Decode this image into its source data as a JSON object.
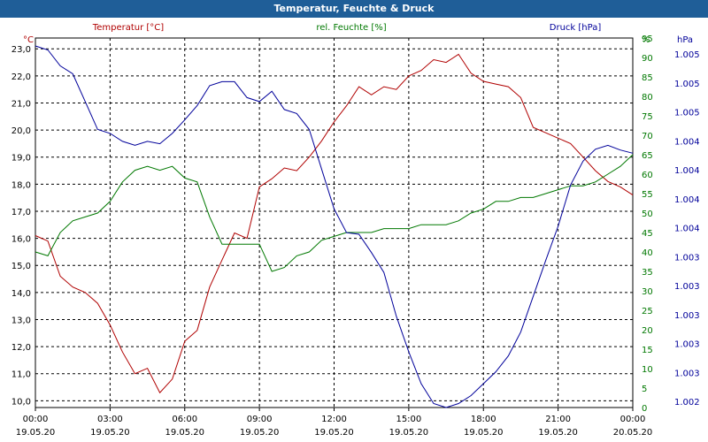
{
  "window": {
    "title": "Temperatur, Feuchte & Druck"
  },
  "chart_data": {
    "type": "line",
    "title": "Temperatur, Feuchte & Druck",
    "grid": true,
    "colors": {
      "temperature": "#b00000",
      "humidity": "#007800",
      "pressure": "#00009a",
      "grid": "#000000",
      "title_bg": "#1f5e98"
    },
    "x_ticks": [
      {
        "time": "00:00",
        "date": "19.05.20"
      },
      {
        "time": "03:00",
        "date": "19.05.20"
      },
      {
        "time": "06:00",
        "date": "19.05.20"
      },
      {
        "time": "09:00",
        "date": "19.05.20"
      },
      {
        "time": "12:00",
        "date": "19.05.20"
      },
      {
        "time": "15:00",
        "date": "19.05.20"
      },
      {
        "time": "18:00",
        "date": "19.05.20"
      },
      {
        "time": "21:00",
        "date": "19.05.20"
      },
      {
        "time": "00:00",
        "date": "20.05.20"
      }
    ],
    "axes": {
      "temperature": {
        "unit": "°C",
        "header": "Temperatur [°C]",
        "min": 9.75,
        "max": 23.4,
        "ticks": [
          "10,0",
          "11,0",
          "12,0",
          "13,0",
          "14,0",
          "15,0",
          "16,0",
          "17,0",
          "18,0",
          "19,0",
          "20,0",
          "21,0",
          "22,0",
          "23,0"
        ]
      },
      "humidity": {
        "unit": "%",
        "header": "rel. Feuchte [%]",
        "min": 0,
        "max": 95,
        "ticks": [
          "0",
          "5",
          "10",
          "15",
          "20",
          "25",
          "30",
          "35",
          "40",
          "45",
          "50",
          "55",
          "60",
          "65",
          "70",
          "75",
          "80",
          "85",
          "90",
          "95"
        ]
      },
      "pressure": {
        "unit": "hPa",
        "header": "Druck [hPa]",
        "ticks": [
          "1.002",
          "1.003",
          "1.003",
          "1.003",
          "1.003",
          "1.003",
          "1.004",
          "1.004",
          "1.004",
          "1.004",
          "1.005",
          "1.005",
          "1.005"
        ]
      }
    },
    "x_range_hours": [
      0,
      24
    ],
    "series": [
      {
        "name": "Temperatur [°C]",
        "axis": "temperature",
        "x": [
          0,
          0.5,
          1,
          1.5,
          2,
          2.5,
          3,
          3.5,
          4,
          4.5,
          5,
          5.5,
          6,
          6.5,
          7,
          7.5,
          8,
          8.5,
          9,
          9.5,
          10,
          10.5,
          11,
          11.5,
          12,
          12.5,
          13,
          13.5,
          14,
          14.5,
          15,
          15.5,
          16,
          16.5,
          17,
          17.5,
          18,
          18.5,
          19,
          19.5,
          20,
          20.5,
          21,
          21.5,
          22,
          22.5,
          23,
          23.5,
          24
        ],
        "values": [
          16.1,
          15.9,
          14.6,
          14.2,
          14.0,
          13.6,
          12.8,
          11.8,
          11.0,
          11.2,
          10.3,
          10.8,
          12.2,
          12.6,
          14.2,
          15.2,
          16.2,
          16.0,
          17.9,
          18.2,
          18.6,
          18.5,
          19.0,
          19.6,
          20.3,
          20.9,
          21.6,
          21.3,
          21.6,
          21.5,
          22.0,
          22.2,
          22.6,
          22.5,
          22.8,
          22.1,
          21.8,
          21.7,
          21.6,
          21.2,
          20.1,
          19.9,
          19.7,
          19.5,
          19.0,
          18.5,
          18.1,
          17.9,
          17.6
        ]
      },
      {
        "name": "rel. Feuchte [%]",
        "axis": "humidity",
        "x": [
          0,
          0.5,
          1,
          1.5,
          2,
          2.5,
          3,
          3.5,
          4,
          4.5,
          5,
          5.5,
          6,
          6.5,
          7,
          7.5,
          8,
          8.5,
          9,
          9.5,
          10,
          10.5,
          11,
          11.5,
          12,
          12.5,
          13,
          13.5,
          14,
          14.5,
          15,
          15.5,
          16,
          16.5,
          17,
          17.5,
          18,
          18.5,
          19,
          19.5,
          20,
          20.5,
          21,
          21.5,
          22,
          22.5,
          23,
          23.5,
          24
        ],
        "values": [
          40,
          39,
          45,
          48,
          49,
          50,
          53,
          58,
          61,
          62,
          61,
          62,
          59,
          58,
          49,
          42,
          42,
          42,
          42,
          35,
          36,
          39,
          40,
          43,
          44,
          45,
          45,
          45,
          46,
          46,
          46,
          47,
          47,
          47,
          48,
          50,
          51,
          53,
          53,
          54,
          54,
          55,
          56,
          57,
          57,
          58,
          60,
          62,
          65
        ]
      },
      {
        "name": "Druck [hPa]",
        "axis": "pressure",
        "x": [
          0,
          0.5,
          1,
          1.5,
          2,
          2.5,
          3,
          3.5,
          4,
          4.5,
          5,
          5.5,
          6,
          6.5,
          7,
          7.5,
          8,
          8.5,
          9,
          9.5,
          10,
          10.5,
          11,
          11.5,
          12,
          12.5,
          13,
          13.5,
          14,
          14.5,
          15,
          15.5,
          16,
          16.5,
          17,
          17.5,
          18,
          18.5,
          19,
          19.5,
          20,
          20.5,
          21,
          21.5,
          22,
          22.5,
          23,
          23.5,
          24
        ],
        "values": [
          1.00505,
          1.005,
          1.0048,
          1.0047,
          1.00435,
          1.004,
          1.00395,
          1.00385,
          1.0038,
          1.00385,
          1.00382,
          1.00395,
          1.00412,
          1.0043,
          1.00455,
          1.0046,
          1.0046,
          1.0044,
          1.00435,
          1.00448,
          1.00425,
          1.0042,
          1.004,
          1.0035,
          1.003,
          1.0027,
          1.00268,
          1.00245,
          1.0022,
          1.00165,
          1.0012,
          1.0008,
          1.00055,
          1.0005,
          1.00055,
          1.00065,
          1.0008,
          1.00095,
          1.00115,
          1.00145,
          1.0019,
          1.00235,
          1.00278,
          1.0033,
          1.0036,
          1.00375,
          1.0038,
          1.00374,
          1.0037
        ]
      }
    ]
  }
}
